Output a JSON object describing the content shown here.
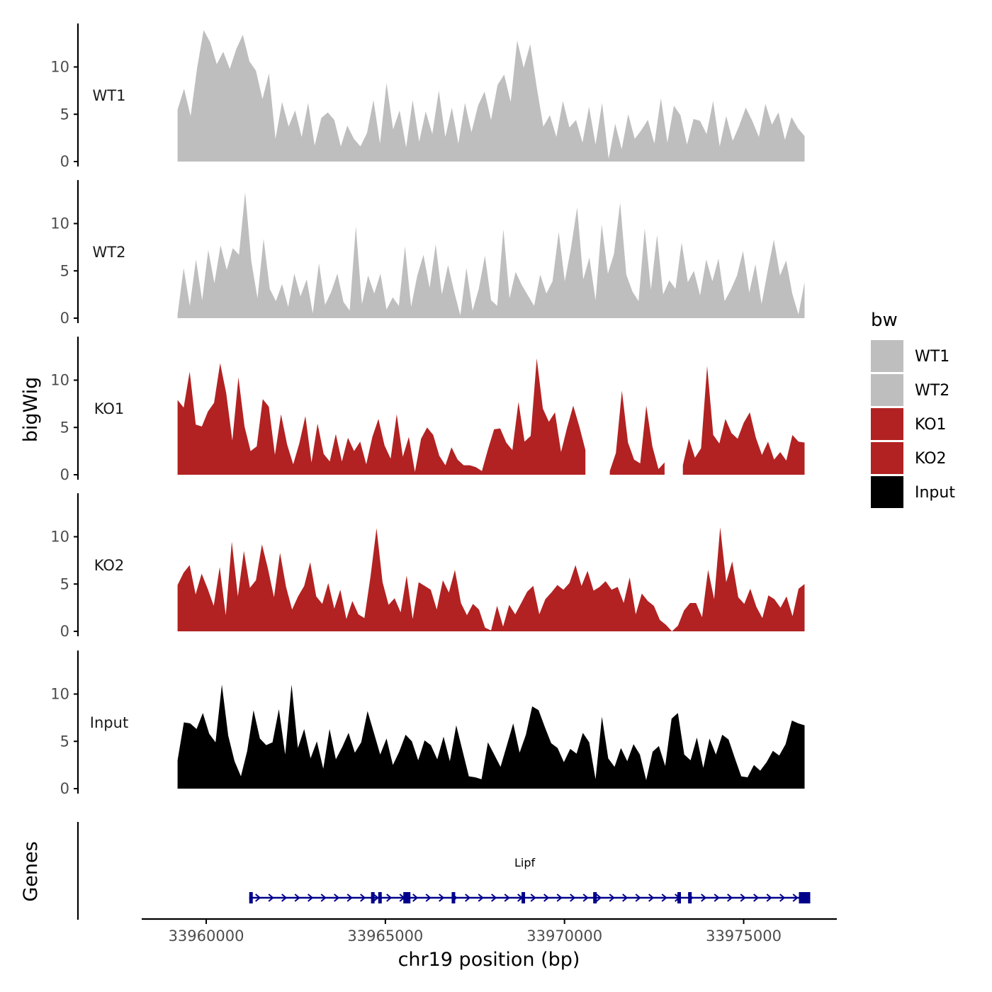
{
  "chart_data": {
    "type": "area",
    "chromosome": "chr19",
    "xlabel": "chr19 position (bp)",
    "ylabel": "bigWig",
    "genes_label": "Genes",
    "xlim": [
      33958200,
      33977600
    ],
    "data_range": [
      33959200,
      33976700
    ],
    "xticks": [
      33960000,
      33965000,
      33970000,
      33975000
    ],
    "ylim": [
      0,
      14
    ],
    "yticks": [
      0,
      5,
      10
    ],
    "legend": {
      "title": "bw",
      "position": "right",
      "entries": [
        {
          "label": "WT1",
          "color": "#BEBEBE"
        },
        {
          "label": "WT2",
          "color": "#BEBEBE"
        },
        {
          "label": "KO1",
          "color": "#B22222"
        },
        {
          "label": "KO2",
          "color": "#B22222"
        },
        {
          "label": "Input",
          "color": "#000000"
        }
      ]
    },
    "series": [
      {
        "name": "WT1",
        "color": "#BEBEBE",
        "values": [
          5.5,
          7.7,
          4.8,
          9.9,
          13.9,
          12.6,
          10.3,
          11.6,
          9.8,
          11.9,
          13.4,
          10.6,
          9.6,
          6.6,
          9.3,
          2.4,
          6.3,
          3.7,
          5.4,
          2.6,
          6.2,
          1.7,
          4.6,
          5.2,
          4.4,
          1.6,
          3.8,
          2.4,
          1.6,
          3.0,
          6.5,
          1.9,
          8.3,
          3.4,
          5.4,
          1.5,
          6.5,
          2.1,
          5.3,
          2.9,
          7.5,
          2.6,
          5.7,
          1.9,
          6.2,
          3.1,
          5.9,
          7.4,
          4.4,
          8.1,
          9.2,
          6.3,
          12.8,
          9.9,
          12.4,
          7.8,
          3.7,
          4.9,
          2.6,
          6.4,
          3.6,
          4.4,
          2.0,
          5.8,
          1.8,
          6.2,
          0.3,
          4.0,
          1.3,
          5.0,
          2.4,
          3.3,
          4.4,
          1.9,
          6.7,
          2.0,
          5.9,
          4.9,
          1.8,
          4.5,
          4.3,
          2.9,
          6.4,
          1.6,
          4.8,
          2.2,
          3.8,
          5.7,
          4.3,
          2.6,
          6.1,
          3.9,
          5.2,
          2.3,
          4.7,
          3.5,
          2.7
        ]
      },
      {
        "name": "WT2",
        "color": "#BEBEBE",
        "values": [
          0.4,
          5.3,
          1.3,
          6.2,
          1.9,
          7.2,
          3.7,
          7.7,
          5.1,
          7.4,
          6.7,
          13.3,
          6.0,
          2.1,
          8.4,
          3.1,
          1.8,
          3.6,
          1.2,
          4.7,
          2.3,
          4.1,
          0.5,
          5.8,
          1.4,
          2.8,
          4.7,
          1.7,
          0.8,
          9.7,
          1.5,
          4.5,
          2.6,
          4.7,
          0.9,
          2.2,
          1.3,
          7.6,
          1.2,
          4.5,
          6.7,
          3.2,
          7.8,
          2.5,
          5.6,
          2.8,
          0.3,
          5.3,
          0.8,
          3.1,
          6.6,
          1.9,
          1.3,
          9.4,
          2.1,
          4.9,
          3.5,
          2.4,
          1.3,
          4.6,
          2.6,
          3.9,
          9.1,
          3.9,
          7.4,
          11.7,
          4.1,
          6.4,
          1.9,
          9.9,
          4.7,
          6.8,
          12.2,
          4.6,
          2.8,
          1.8,
          9.5,
          3.0,
          8.8,
          2.5,
          4.0,
          3.1,
          8.0,
          3.8,
          5.0,
          2.4,
          6.2,
          3.9,
          6.3,
          1.8,
          3.0,
          4.5,
          7.1,
          2.7,
          5.7,
          1.5,
          5.0,
          8.3,
          4.5,
          6.1,
          2.6,
          0.4,
          3.8
        ]
      },
      {
        "name": "KO1",
        "color": "#B22222",
        "values": [
          7.9,
          7.1,
          10.9,
          5.3,
          5.1,
          6.7,
          7.6,
          11.8,
          8.6,
          3.6,
          10.3,
          5.1,
          2.5,
          3.0,
          8.0,
          7.2,
          2.1,
          6.4,
          3.2,
          1.1,
          3.3,
          6.2,
          1.3,
          5.4,
          2.2,
          1.4,
          4.3,
          1.4,
          3.9,
          2.5,
          3.5,
          1.1,
          4.0,
          5.9,
          3.1,
          1.7,
          6.4,
          1.9,
          4.0,
          0.3,
          3.8,
          5.0,
          4.2,
          2.0,
          1.0,
          2.9,
          1.6,
          1.0,
          1.0,
          0.8,
          0.4,
          2.7,
          4.8,
          4.9,
          3.4,
          2.6,
          7.7,
          3.5,
          4.1,
          12.3,
          7.0,
          5.6,
          6.6,
          2.4,
          5.0,
          7.3,
          5.1,
          2.6,
          null,
          null,
          null,
          0.4,
          2.3,
          8.9,
          3.4,
          1.6,
          1.2,
          7.3,
          3.0,
          0.6,
          1.3,
          null,
          null,
          1.0,
          3.8,
          1.8,
          2.8,
          11.5,
          4.2,
          3.3,
          5.9,
          4.4,
          3.8,
          5.5,
          6.6,
          3.9,
          2.1,
          3.5,
          1.6,
          2.4,
          1.5,
          4.2,
          3.5,
          3.4
        ]
      },
      {
        "name": "KO2",
        "color": "#B22222",
        "values": [
          4.9,
          6.2,
          7.0,
          3.9,
          6.1,
          4.5,
          2.7,
          6.8,
          1.7,
          9.5,
          3.7,
          8.5,
          4.6,
          5.4,
          9.2,
          6.6,
          3.6,
          8.3,
          4.7,
          2.3,
          3.7,
          4.8,
          7.3,
          3.7,
          2.9,
          5.1,
          2.4,
          4.4,
          1.3,
          3.2,
          1.8,
          1.4,
          5.8,
          10.9,
          5.2,
          2.8,
          3.5,
          2.0,
          5.9,
          1.3,
          5.2,
          4.8,
          4.4,
          2.3,
          5.4,
          4.1,
          6.5,
          3.0,
          1.7,
          2.9,
          2.3,
          0.4,
          0.1,
          2.7,
          0.5,
          2.8,
          1.8,
          3.0,
          4.2,
          4.8,
          1.8,
          3.4,
          4.1,
          4.9,
          4.4,
          5.1,
          7.0,
          4.8,
          6.4,
          4.3,
          4.7,
          5.3,
          4.4,
          4.7,
          3.0,
          5.7,
          1.8,
          4.0,
          3.2,
          2.7,
          1.2,
          0.7,
          0.0,
          0.6,
          2.2,
          3.0,
          3.0,
          1.5,
          6.5,
          3.4,
          11.0,
          5.2,
          7.4,
          3.6,
          2.9,
          4.5,
          2.6,
          1.4,
          3.8,
          3.4,
          2.5,
          3.7,
          1.6,
          4.5,
          5.0
        ]
      },
      {
        "name": "Input",
        "color": "#000000",
        "values": [
          3.0,
          7.0,
          6.9,
          6.3,
          8.0,
          5.8,
          4.9,
          11.0,
          5.6,
          2.9,
          1.3,
          4.0,
          8.3,
          5.3,
          4.6,
          4.9,
          8.4,
          3.6,
          11.0,
          4.3,
          6.3,
          3.2,
          5.0,
          2.1,
          6.3,
          3.1,
          4.4,
          5.9,
          3.8,
          4.9,
          8.2,
          5.9,
          3.6,
          5.3,
          2.5,
          3.9,
          5.7,
          5.0,
          3.0,
          5.1,
          4.6,
          3.1,
          5.5,
          2.9,
          6.7,
          4.0,
          1.3,
          1.2,
          1.0,
          4.9,
          3.6,
          2.3,
          4.6,
          6.9,
          3.8,
          5.7,
          8.7,
          8.3,
          6.5,
          4.8,
          4.3,
          2.8,
          4.2,
          3.7,
          5.9,
          4.9,
          1.0,
          7.6,
          3.2,
          2.3,
          4.3,
          2.9,
          4.7,
          3.6,
          0.9,
          3.9,
          4.5,
          2.4,
          7.4,
          8.0,
          3.6,
          3.0,
          5.4,
          2.2,
          5.3,
          3.6,
          5.7,
          5.2,
          3.2,
          1.3,
          1.2,
          2.5,
          1.9,
          2.8,
          4.0,
          3.5,
          4.7,
          7.2,
          6.9,
          6.7
        ]
      }
    ],
    "gene_track": {
      "label": "Lipf",
      "start": 33961200,
      "end": 33976700,
      "strand": "+",
      "color": "#00008B",
      "exons": [
        33961250,
        33964650,
        33964850,
        33965600,
        33966900,
        33968850,
        33970850,
        33973200,
        33973500,
        33976700
      ]
    }
  }
}
